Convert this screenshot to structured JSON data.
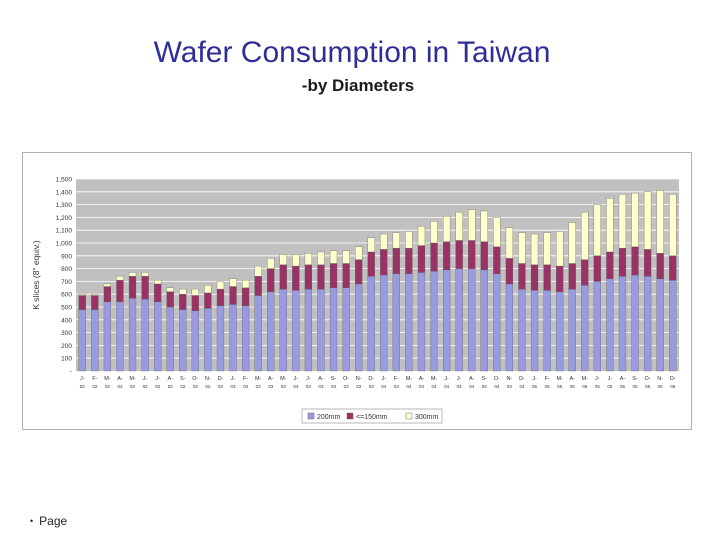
{
  "slide": {
    "title": "Wafer Consumption in Taiwan",
    "subtitle": "-by Diameters",
    "footer_bullet": "•",
    "footer_text": "Page"
  },
  "colors": {
    "s200": "#9a9ae0",
    "s150": "#993366",
    "s300": "#ffffcc",
    "plot_bg": "#c0c0c0",
    "grid": "#ffffff"
  },
  "chart_data": {
    "type": "bar",
    "stacked": true,
    "title": "",
    "ylabel": "K slices (8\" equiv.)",
    "xlabel": "",
    "ylim": [
      0,
      1500
    ],
    "ytick_step": 100,
    "ytick_labels": [
      "-",
      "100",
      "200",
      "300",
      "400",
      "500",
      "600",
      "700",
      "800",
      "900",
      "1,000",
      "1,100",
      "1,200",
      "1,300",
      "1,400",
      "1,500"
    ],
    "grid": true,
    "legend": "bottom-center",
    "categories": [
      "J-02",
      "F-02",
      "M-02",
      "A-02",
      "M-02",
      "J-02",
      "J-02",
      "A-02",
      "S-02",
      "O-02",
      "N-02",
      "D-02",
      "J-03",
      "F-03",
      "M-03",
      "A-03",
      "M-03",
      "J-03",
      "J-03",
      "A-03",
      "S-03",
      "O-03",
      "N-03",
      "D-03",
      "J-04",
      "F-04",
      "M-04",
      "A-04",
      "M-04",
      "J-04",
      "J-04",
      "A-04",
      "S-04",
      "O-04",
      "N-04",
      "D-04",
      "J-05",
      "F-05",
      "M-05",
      "A-05",
      "M-05",
      "J-05",
      "J-05",
      "A-05",
      "S-05",
      "O-05",
      "N-05",
      "D-05"
    ],
    "series": [
      {
        "name": "200mm",
        "values": [
          480,
          480,
          540,
          540,
          570,
          560,
          540,
          500,
          480,
          470,
          490,
          510,
          520,
          510,
          590,
          620,
          640,
          630,
          640,
          640,
          650,
          650,
          680,
          740,
          750,
          760,
          760,
          770,
          780,
          790,
          800,
          800,
          790,
          760,
          680,
          640,
          630,
          630,
          620,
          640,
          670,
          700,
          720,
          740,
          750,
          740,
          720,
          710
        ]
      },
      {
        "name": "<=150mm",
        "values": [
          110,
          110,
          120,
          170,
          170,
          180,
          140,
          120,
          120,
          120,
          120,
          130,
          140,
          140,
          150,
          180,
          190,
          190,
          190,
          190,
          190,
          190,
          190,
          190,
          200,
          200,
          200,
          210,
          220,
          220,
          220,
          220,
          220,
          210,
          200,
          200,
          200,
          200,
          200,
          200,
          200,
          200,
          210,
          220,
          220,
          210,
          200,
          190
        ]
      },
      {
        "name": "300mm",
        "values": [
          10,
          10,
          20,
          30,
          30,
          30,
          30,
          30,
          40,
          50,
          60,
          60,
          60,
          60,
          80,
          80,
          80,
          90,
          90,
          100,
          100,
          100,
          100,
          110,
          120,
          120,
          130,
          150,
          170,
          200,
          220,
          240,
          240,
          230,
          240,
          240,
          240,
          250,
          270,
          320,
          370,
          400,
          420,
          420,
          420,
          450,
          490,
          480
        ]
      }
    ]
  }
}
